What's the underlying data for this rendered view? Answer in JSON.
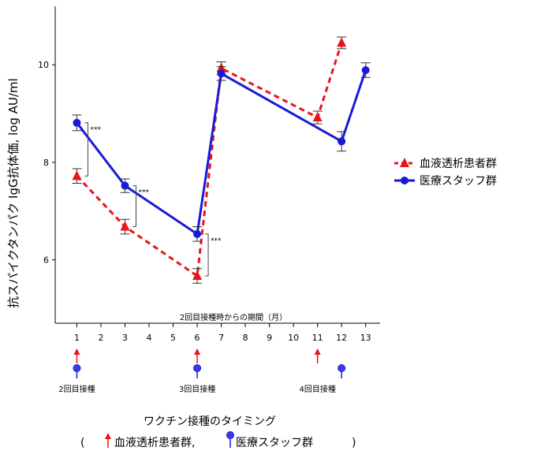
{
  "colors": {
    "patients": "#e8141a",
    "staff": "#1a1ad6",
    "axis": "#000000",
    "errorbar": "#333333"
  },
  "chart_data": {
    "type": "line",
    "title": "",
    "xlabel": "2回目接種時からの期間（月）",
    "ylabel": "抗スパイクタンパク IgG抗体価, log AU/ml",
    "x_ticks": [
      1,
      2,
      3,
      4,
      5,
      6,
      7,
      8,
      9,
      10,
      11,
      12,
      13
    ],
    "xlim": [
      0.1,
      13.6
    ],
    "y_ticks": [
      6,
      8,
      10
    ],
    "ylim": [
      4.7,
      11.2
    ],
    "legend_position": "right",
    "grid": false,
    "series": [
      {
        "name": "血液透析患者群",
        "style": "dashed",
        "marker": "triangle",
        "color": "#e8141a",
        "x": [
          1,
          3,
          6,
          7,
          11,
          12
        ],
        "y": [
          7.72,
          6.68,
          5.67,
          9.93,
          8.92,
          10.45
        ],
        "err": [
          0.15,
          0.15,
          0.15,
          0.13,
          0.13,
          0.12
        ]
      },
      {
        "name": "医療スタッフ群",
        "style": "solid",
        "marker": "circle",
        "color": "#1a1ad6",
        "x": [
          1,
          3,
          6,
          7,
          12,
          13
        ],
        "y": [
          8.81,
          7.52,
          6.53,
          9.82,
          8.43,
          9.89
        ],
        "err": [
          0.16,
          0.14,
          0.15,
          0.14,
          0.2,
          0.15
        ]
      }
    ],
    "significance": [
      {
        "x": 1,
        "y_low": 7.72,
        "y_high": 8.81,
        "label": "***"
      },
      {
        "x": 3,
        "y_low": 6.68,
        "y_high": 7.52,
        "label": "***"
      },
      {
        "x": 6,
        "y_low": 5.67,
        "y_high": 6.53,
        "label": "***"
      }
    ]
  },
  "vaccination": {
    "groups": [
      {
        "label": "2回目接種",
        "patient_x": 1,
        "staff_x": 1
      },
      {
        "label": "3回目接種",
        "patient_x": 6,
        "staff_x": 6
      },
      {
        "label": "4回目接種",
        "patient_x": 11,
        "staff_x": 12
      }
    ],
    "caption": "ワクチン接種のタイミング",
    "caption_open": "(",
    "caption_patients": "血液透析患者群,",
    "caption_staff": "医療スタッフ群",
    "caption_close": ")"
  }
}
